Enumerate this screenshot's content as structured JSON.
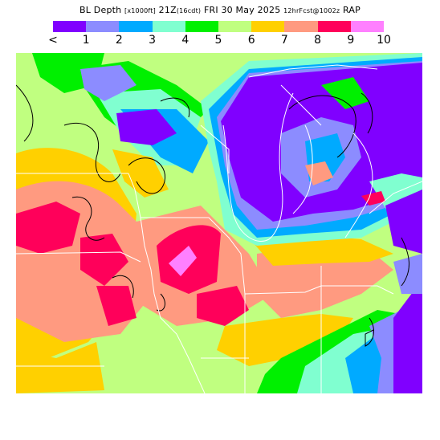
{
  "title": {
    "field": "BL Depth",
    "units": "[x1000ft]",
    "valid_time": "21Z",
    "local_time": "(16cdt)",
    "date": "FRI 30 May 2025",
    "forecast_info": "12hrFcst@1002z",
    "model": "RAP"
  },
  "legend": {
    "colors": [
      "#8000ff",
      "#8c8cff",
      "#00aaff",
      "#80ffd0",
      "#00f000",
      "#c0ff80",
      "#ffd000",
      "#ff9a80",
      "#ff005a",
      "#ff80ff"
    ],
    "labels": [
      "<",
      "1",
      "2",
      "3",
      "4",
      "5",
      "6",
      "7",
      "8",
      "9",
      "10"
    ]
  },
  "map": {
    "background_color": "#c0ff80",
    "region": "Upper Midwest / Great Lakes",
    "color_fills": "bl-depth-shading",
    "lines": [
      "state-borders",
      "terrain-contours",
      "lake-shorelines"
    ]
  }
}
